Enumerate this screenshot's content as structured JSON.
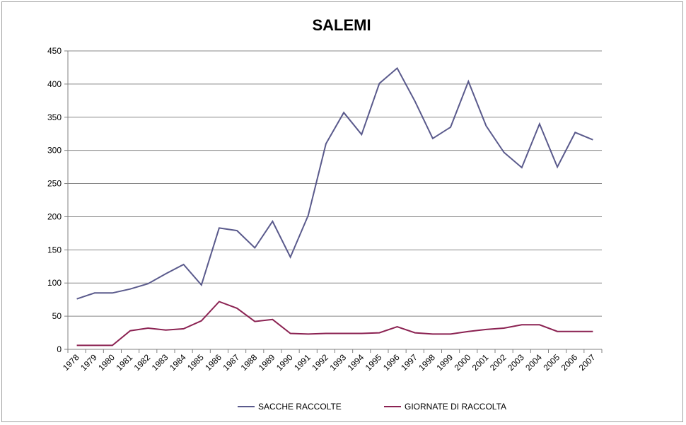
{
  "chart_data": {
    "type": "line",
    "title": "SALEMI",
    "xlabel": "",
    "ylabel": "",
    "ylim": [
      0,
      450
    ],
    "yticks": [
      0,
      50,
      100,
      150,
      200,
      250,
      300,
      350,
      400,
      450
    ],
    "grid": true,
    "legend_position": "bottom",
    "categories": [
      "1978",
      "1979",
      "1980",
      "1981",
      "1982",
      "1983",
      "1984",
      "1985",
      "1986",
      "1987",
      "1988",
      "1989",
      "1990",
      "1991",
      "1992",
      "1993",
      "1994",
      "1995",
      "1996",
      "1997",
      "1998",
      "1999",
      "2000",
      "2001",
      "2002",
      "2003",
      "2004",
      "2005",
      "2006",
      "2007"
    ],
    "series": [
      {
        "name": "SACCHE RACCOLTE",
        "color": "#5a5a8c",
        "values": [
          76,
          85,
          85,
          91,
          99,
          114,
          128,
          97,
          183,
          179,
          153,
          193,
          139,
          202,
          310,
          357,
          324,
          401,
          424,
          374,
          318,
          335,
          404,
          337,
          297,
          274,
          340,
          275,
          327,
          316
        ]
      },
      {
        "name": "GIORNATE DI RACCOLTA",
        "color": "#8b2252",
        "values": [
          6,
          6,
          6,
          28,
          32,
          29,
          31,
          43,
          72,
          62,
          42,
          45,
          24,
          23,
          24,
          24,
          24,
          25,
          34,
          25,
          23,
          23,
          27,
          30,
          32,
          37,
          37,
          27,
          27,
          27
        ]
      }
    ]
  }
}
